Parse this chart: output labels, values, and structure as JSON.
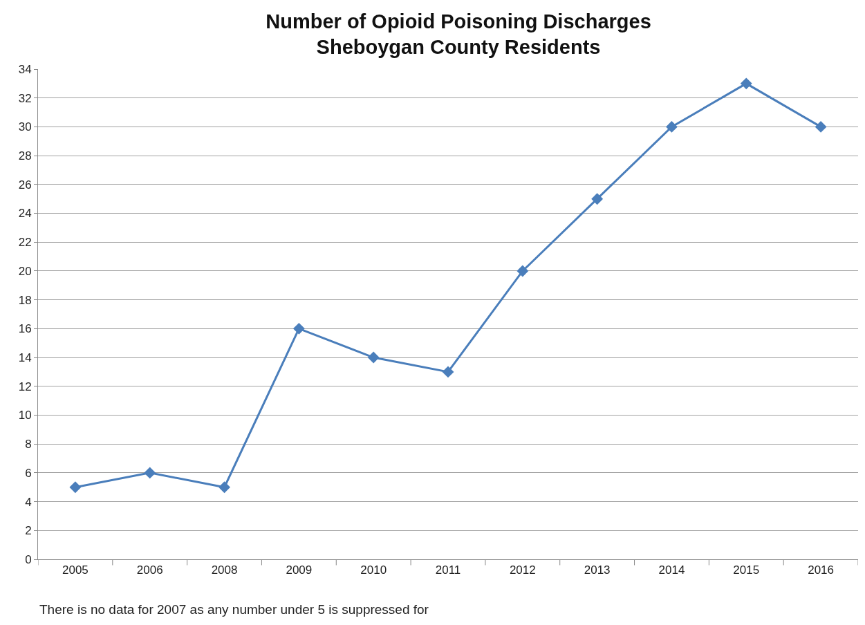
{
  "chart_data": {
    "type": "line",
    "title": "Number of Opioid Poisoning Discharges\nSheboygan County Residents",
    "categories": [
      "2005",
      "2006",
      "2008",
      "2009",
      "2010",
      "2011",
      "2012",
      "2013",
      "2014",
      "2015",
      "2016"
    ],
    "series": [
      {
        "color": "#4a7ebb",
        "values": [
          5,
          6,
          5,
          16,
          14,
          13,
          20,
          25,
          30,
          33,
          30
        ]
      }
    ],
    "ylim": [
      0,
      34
    ],
    "yticks": [
      0,
      2,
      4,
      6,
      8,
      10,
      12,
      14,
      16,
      18,
      20,
      22,
      24,
      26,
      28,
      30,
      32,
      34
    ],
    "grid": "y",
    "marker": "diamond",
    "line_style": "solid",
    "annotations": [
      "There is no data for 2007 as any number under 5 is suppressed for"
    ]
  }
}
